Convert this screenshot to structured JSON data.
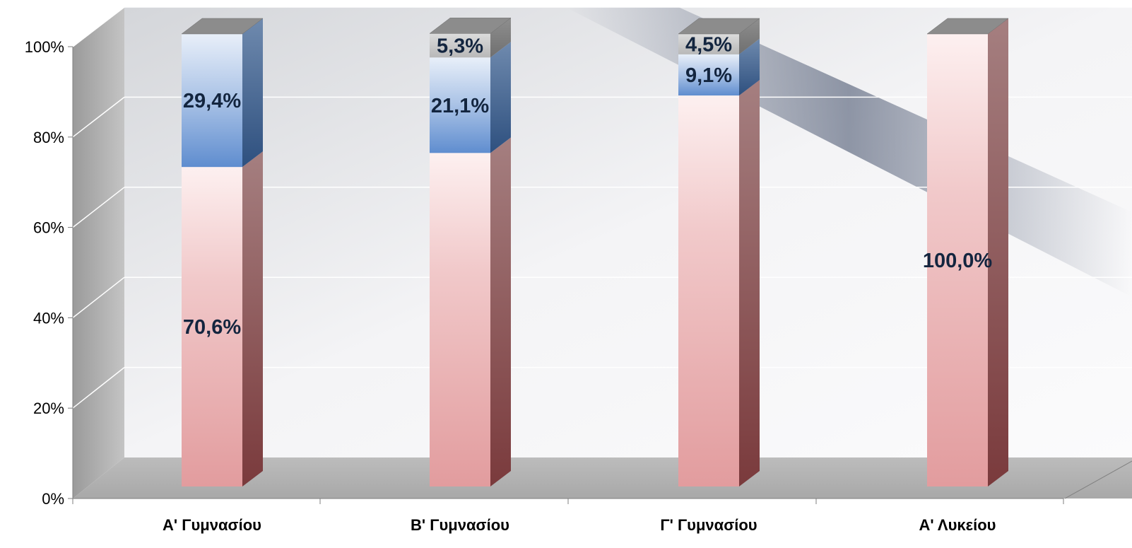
{
  "chart_data": {
    "type": "bar",
    "stacked": true,
    "three_d": true,
    "categories": [
      "Α' Γυμνασίου",
      "Β' Γυμνασίου",
      "Γ' Γυμνασίου",
      "Α' Λυκείου"
    ],
    "series": [
      {
        "color": "#e8a6a8",
        "values": [
          70.6,
          73.7,
          86.4,
          100.0
        ],
        "labels": [
          "70,6%",
          "",
          "",
          "100,0%"
        ]
      },
      {
        "color": "#7fa6da",
        "values": [
          29.4,
          21.1,
          9.1,
          0
        ],
        "labels": [
          "29,4%",
          "21,1%",
          "9,1%",
          ""
        ]
      },
      {
        "color": "#bdbdbd",
        "values": [
          0,
          5.3,
          4.5,
          0
        ],
        "labels": [
          "",
          "5,3%",
          "4,5%",
          ""
        ]
      }
    ],
    "y_ticks": [
      "0%",
      "20%",
      "40%",
      "60%",
      "80%",
      "100%"
    ],
    "ylim": [
      0,
      100
    ],
    "grid": true,
    "legend": "none"
  }
}
